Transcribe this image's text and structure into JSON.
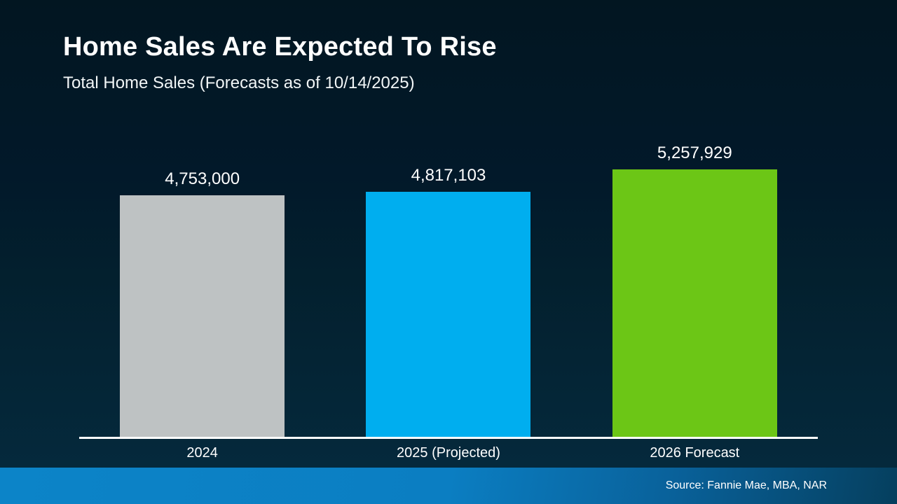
{
  "slide": {
    "title": "Home Sales Are Expected To Rise",
    "subtitle": "Total Home Sales (Forecasts as of 10/14/2025)",
    "source": "Source: Fannie Mae, MBA, NAR"
  },
  "chart_data": {
    "type": "bar",
    "title": "Home Sales Are Expected To Rise",
    "subtitle": "Total Home Sales (Forecasts as of 10/14/2025)",
    "categories": [
      "2024",
      "2025 (Projected)",
      "2026 Forecast"
    ],
    "values": [
      4753000,
      4817103,
      5257929
    ],
    "value_labels": [
      "4,753,000",
      "4,817,103",
      "5,257,929"
    ],
    "bar_colors": [
      "#bec2c3",
      "#00aeef",
      "#6cc616"
    ],
    "xlabel": "",
    "ylabel": "",
    "baseline": 0,
    "grid": false,
    "legend": "none",
    "annotations": [
      "Source: Fannie Mae, MBA, NAR"
    ]
  },
  "colors": {
    "background_top": "#021621",
    "background_bottom": "#05293c",
    "axis_line": "#ffffff",
    "footer_left": "#0c84c8",
    "footer_right": "#053f5e",
    "text": "#ffffff"
  }
}
